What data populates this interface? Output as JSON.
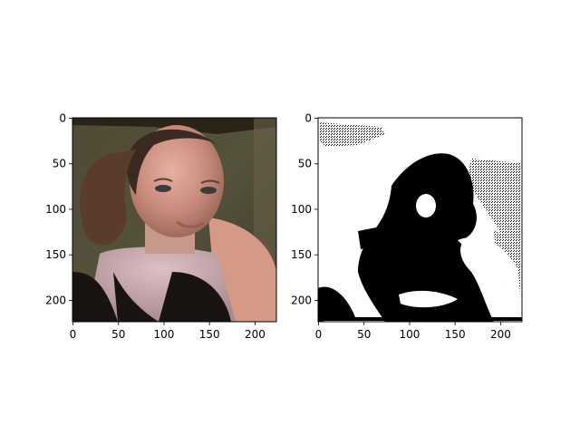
{
  "figure": {
    "background": "#ffffff",
    "subplots": [
      {
        "kind": "photo",
        "subject": "portrait-photo",
        "xticks": [
          "0",
          "50",
          "100",
          "150",
          "200"
        ],
        "yticks": [
          "0",
          "50",
          "100",
          "150",
          "200"
        ],
        "xlim": [
          0,
          224
        ],
        "ylim": [
          224,
          0
        ]
      },
      {
        "kind": "binary-mask",
        "subject": "thresholded-silhouette",
        "xticks": [
          "0",
          "50",
          "100",
          "150",
          "200"
        ],
        "yticks": [
          "0",
          "50",
          "100",
          "150",
          "200"
        ],
        "xlim": [
          0,
          224
        ],
        "ylim": [
          224,
          0
        ]
      }
    ],
    "tick_values": [
      0,
      50,
      100,
      150,
      200
    ],
    "colors": {
      "frame": "#000000",
      "mask_fill": "#000000",
      "mask_bg": "#ffffff"
    }
  }
}
